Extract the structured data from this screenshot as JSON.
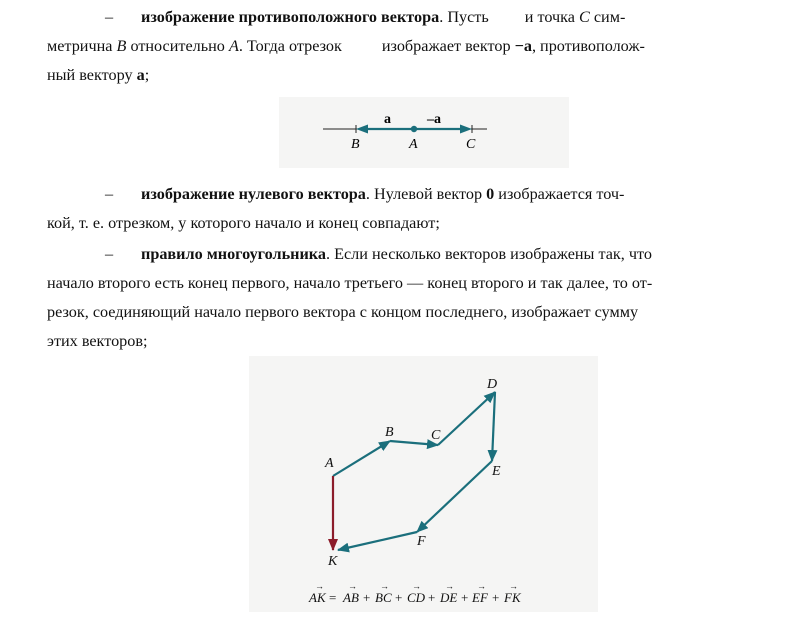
{
  "p1": {
    "dash": "–",
    "term": "изображение противоположного вектора",
    "t1": ". Пусть",
    "t2": "и точка ",
    "C": "C",
    "t3": " сим-",
    "line2a": "метрична ",
    "B": "B",
    "line2b": " относительно ",
    "A": "A",
    "line2c": ". Тогда отрезок",
    "line2d": "изображает вектор ",
    "neg_a": "−a",
    "line2e": ", противополож-",
    "line3a": "ный вектору ",
    "a": "a",
    "line3b": ";"
  },
  "fig1": {
    "label_a": "a",
    "label_neg_a": "–a",
    "B": "B",
    "A": "A",
    "C": "C",
    "colors": {
      "vector": "#1b6f7c",
      "axis": "#222222"
    }
  },
  "p2": {
    "dash": "–",
    "term": "изображение нулевого вектора",
    "t1": ". Нулевой вектор ",
    "zero": "0",
    "t2": " изображается точ-",
    "line2": "кой, т. е. отрезком, у которого начало и конец совпадают;"
  },
  "p3": {
    "dash": "–",
    "term": "правило многоугольника",
    "t1": ". Если несколько векторов изображены так, что",
    "line2": "начало второго есть конец первого, начало третьего — конец второго и так далее, то от-",
    "line3": "резок, соединяющий начало первого вектора с концом последнего, изображает сумму",
    "line4": "этих векторов;"
  },
  "fig2": {
    "points": {
      "A": "A",
      "B": "B",
      "C": "C",
      "D": "D",
      "E": "E",
      "F": "F",
      "K": "K"
    },
    "formula": {
      "lhs": "AK",
      "eq": "=",
      "terms": [
        "AB",
        "BC",
        "CD",
        "DE",
        "EF",
        "FK"
      ],
      "plus": "+"
    },
    "colors": {
      "chain": "#1b6f7c",
      "sum": "#8c1c2a"
    }
  }
}
